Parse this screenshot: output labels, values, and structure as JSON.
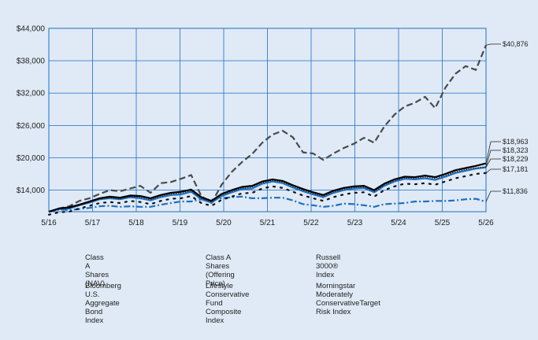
{
  "chart_data": {
    "type": "line",
    "title": "",
    "xlabel": "",
    "ylabel": "",
    "x": [
      "5/16",
      "8/16",
      "11/16",
      "2/17",
      "5/17",
      "8/17",
      "11/17",
      "2/18",
      "5/18",
      "8/18",
      "11/18",
      "2/19",
      "5/19",
      "8/19",
      "11/19",
      "2/20",
      "3/20",
      "5/20",
      "8/20",
      "11/20",
      "2/21",
      "5/21",
      "8/21",
      "11/21",
      "2/22",
      "5/22",
      "8/22",
      "9/22",
      "11/22",
      "2/23",
      "5/23",
      "8/23",
      "10/23",
      "2/24",
      "5/24",
      "8/24",
      "11/24",
      "2/25",
      "4/25",
      "5/25",
      "8/25",
      "11/25",
      "2/26",
      "5/26"
    ],
    "x_tick_labels": [
      "5/16",
      "5/17",
      "5/18",
      "5/19",
      "5/20",
      "5/21",
      "5/22",
      "5/23",
      "5/24",
      "5/25",
      "5/26"
    ],
    "y_tick_labels": [
      "$14,000",
      "$20,000",
      "$26,000",
      "$32,000",
      "$38,000",
      "$44,000"
    ],
    "ylim": [
      10000,
      44000
    ],
    "y_ticks": [
      14000,
      20000,
      26000,
      32000,
      38000,
      44000
    ],
    "grid": true,
    "legend_position": "bottom",
    "series": [
      {
        "name": "Class A Shares (NAV)",
        "color": "#1f6fc4",
        "style": "solid",
        "end_label": "$18,229",
        "values": [
          10000,
          10500,
          10600,
          11200,
          11700,
          12300,
          12500,
          12300,
          12700,
          12500,
          12100,
          12700,
          13100,
          13200,
          13700,
          12300,
          11700,
          12900,
          13600,
          14200,
          14300,
          15200,
          15600,
          15300,
          14500,
          13800,
          13200,
          12700,
          13500,
          14000,
          14300,
          14400,
          13600,
          14800,
          15600,
          16100,
          16000,
          16200,
          15900,
          16500,
          17200,
          17600,
          18000,
          18229
        ]
      },
      {
        "name": "Class A Shares (Offering Price)",
        "color": "#111111",
        "style": "dotted",
        "end_label": "$17,181",
        "values": [
          9450,
          9900,
          10000,
          10600,
          11100,
          11600,
          11800,
          11600,
          12000,
          11800,
          11400,
          12000,
          12400,
          12500,
          12900,
          11600,
          11100,
          12200,
          12800,
          13400,
          13500,
          14300,
          14700,
          14400,
          13700,
          13000,
          12500,
          12000,
          12700,
          13200,
          13500,
          13600,
          12800,
          14000,
          14700,
          15200,
          15100,
          15300,
          15000,
          15600,
          16200,
          16600,
          17000,
          17181
        ]
      },
      {
        "name": "Russell 3000® Index",
        "color": "#4a4a4a",
        "style": "dashed",
        "end_label": "$40,876",
        "values": [
          10000,
          10600,
          11000,
          12000,
          12500,
          13300,
          14000,
          13800,
          14300,
          14800,
          13500,
          15300,
          15500,
          16100,
          16800,
          12900,
          11600,
          15000,
          17400,
          19200,
          20700,
          22800,
          24300,
          25000,
          23800,
          21000,
          20800,
          19600,
          20800,
          21800,
          22600,
          23700,
          22800,
          25800,
          28000,
          29500,
          30200,
          31300,
          29200,
          33000,
          35600,
          37000,
          36300,
          40876
        ]
      },
      {
        "name": "Bloomberg U.S. Aggregate Bond Index",
        "color": "#1f6fc4",
        "style": "dashdot",
        "end_label": "$11,836",
        "values": [
          10000,
          10400,
          10300,
          10500,
          10700,
          11000,
          11100,
          10900,
          11000,
          10900,
          10900,
          11300,
          11600,
          11900,
          11900,
          12300,
          12200,
          12500,
          12700,
          12800,
          12500,
          12500,
          12600,
          12600,
          12100,
          11400,
          11200,
          10900,
          11100,
          11500,
          11400,
          11200,
          10900,
          11400,
          11500,
          11600,
          11900,
          11900,
          12000,
          12000,
          12100,
          12300,
          12400,
          11836
        ]
      },
      {
        "name": "Lifestyle Conservative Fund Composite Index",
        "color": "#000000",
        "style": "solid",
        "end_label": "$18,963",
        "values": [
          10000,
          10600,
          10800,
          11300,
          11900,
          12500,
          12800,
          12600,
          13000,
          12900,
          12500,
          13100,
          13500,
          13700,
          14100,
          12700,
          12000,
          13300,
          14000,
          14600,
          14800,
          15600,
          16000,
          15700,
          14900,
          14200,
          13600,
          13100,
          13900,
          14400,
          14700,
          14800,
          14000,
          15200,
          16000,
          16500,
          16400,
          16700,
          16400,
          17000,
          17700,
          18100,
          18500,
          18963
        ]
      },
      {
        "name": "Morningstar Moderately ConservativeTarget Risk Index",
        "color": "#333333",
        "style": "dense-dotted",
        "end_label": "$18,323",
        "values": [
          10000,
          10550,
          10700,
          11200,
          11800,
          12400,
          12600,
          12400,
          12800,
          12700,
          12300,
          12900,
          13300,
          13500,
          13900,
          12500,
          11900,
          13100,
          13800,
          14400,
          14600,
          15400,
          15800,
          15500,
          14700,
          14000,
          13400,
          12900,
          13700,
          14200,
          14500,
          14600,
          13800,
          15000,
          15800,
          16300,
          16200,
          16500,
          16200,
          16700,
          17400,
          17800,
          18100,
          18323
        ]
      }
    ]
  },
  "legend": [
    {
      "label": "Class A Shares (NAV)"
    },
    {
      "label": "Class A Shares\n(Offering Price)"
    },
    {
      "label": "Russell 3000® Index"
    },
    {
      "label": "Bloomberg U.S.\nAggregate Bond Index"
    },
    {
      "label": "Lifestyle\nConservative Fund\nComposite Index"
    },
    {
      "label": "Morningstar\nModerately\nConservativeTarget\nRisk Index"
    }
  ]
}
